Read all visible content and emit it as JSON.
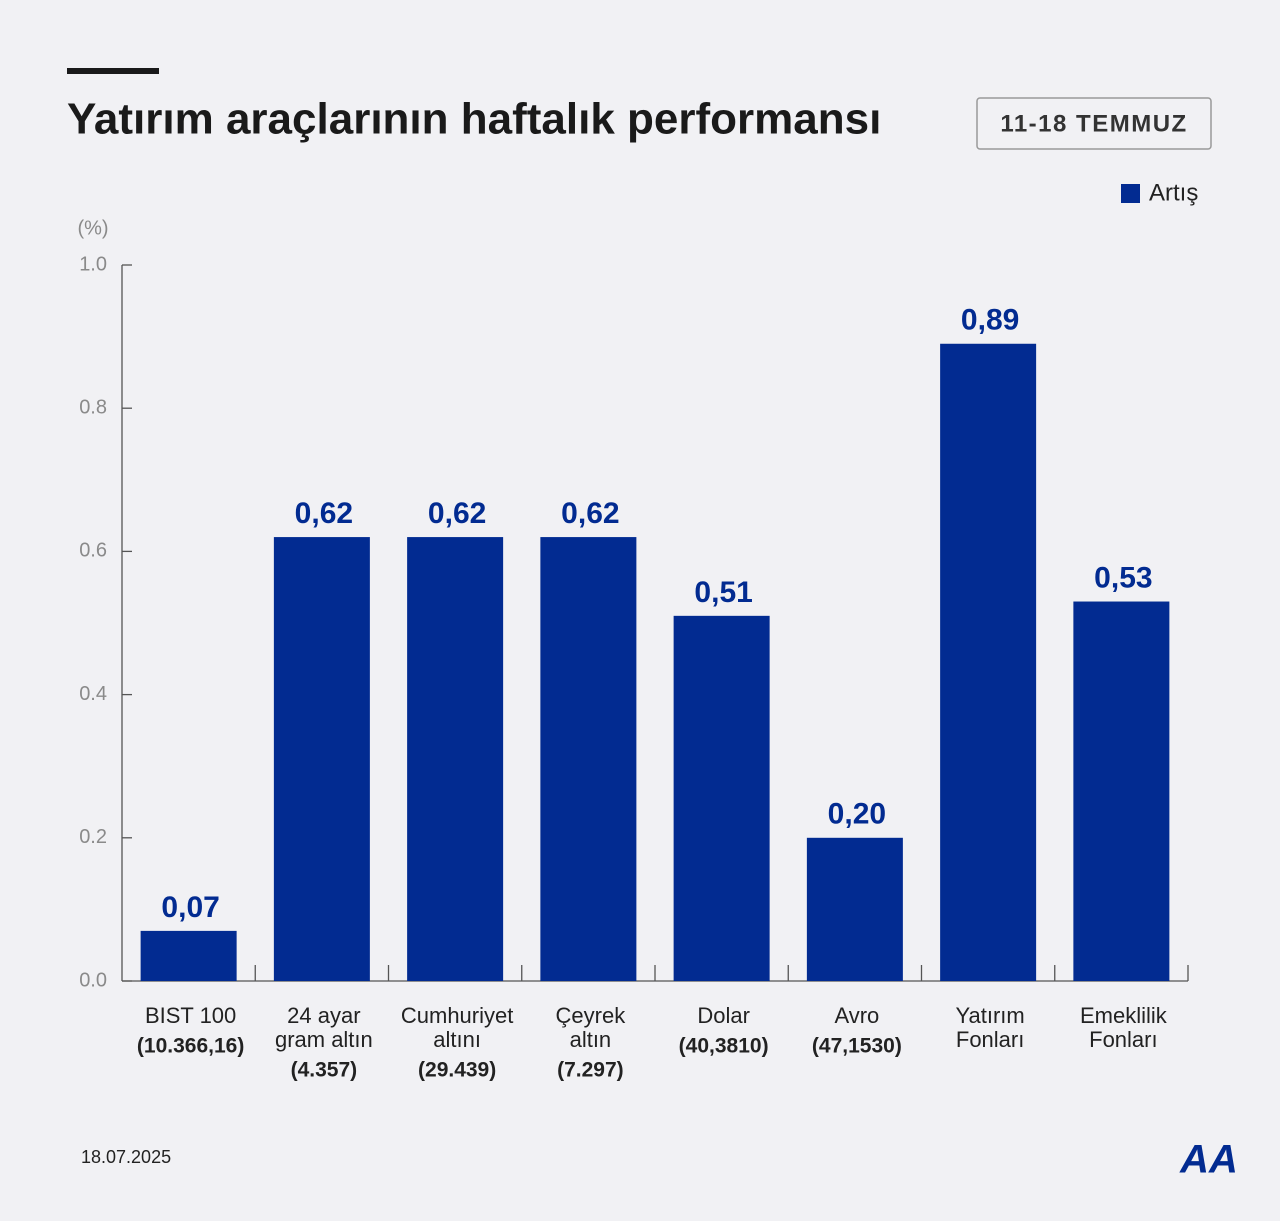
{
  "chart_data": {
    "type": "bar",
    "title": "Yatırım araçlarının haftalık performansı",
    "subtitle": "11-18 TEMMUZ",
    "y_label": "(%)",
    "date": "18.07.2025",
    "source": "AA",
    "categories": [
      "BIST 100",
      "24 ayar\ngram altın",
      "Cumhuriyet\naltını",
      "Çeyrek\naltın",
      "Dolar",
      "Avro",
      "Yatırım\nFonları",
      "Emeklilik\nFonları"
    ],
    "category_notes": [
      "(10.366,16)",
      "(4.357)",
      "(29.439)",
      "(7.297)",
      "(40,3810)",
      "(47,1530)",
      null,
      null
    ],
    "series": [
      {
        "name": "Artış",
        "color": "#022b91",
        "values": [
          0.07,
          0.62,
          0.62,
          0.62,
          0.51,
          0.2,
          0.89,
          0.53
        ],
        "value_labels": [
          "0,07",
          "0,62",
          "0,62",
          "0,62",
          "0,51",
          "0,20",
          "0,89",
          "0,53"
        ]
      }
    ],
    "ylim": [
      0,
      1
    ],
    "yticks": [
      {
        "value": 0,
        "label": "0.0"
      },
      0.2,
      0.4,
      0.6,
      0.8,
      {
        "value": 1,
        "label": "1.0"
      }
    ]
  }
}
